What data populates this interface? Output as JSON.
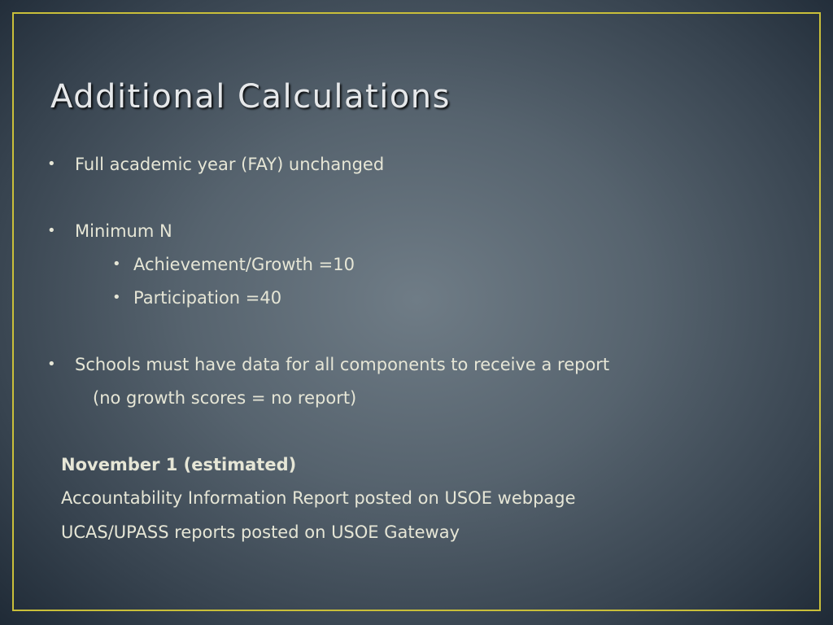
{
  "slide": {
    "title": "Additional Calculations",
    "bullets": [
      {
        "text": "Full academic year (FAY)  unchanged",
        "sub": []
      },
      {
        "text": "Minimum N",
        "sub": [
          "Achievement/Growth =10",
          "Participation =40"
        ]
      },
      {
        "text": "Schools must have data for all components to receive a report",
        "continuation": "(no growth scores = no report)",
        "sub": []
      }
    ],
    "note": {
      "heading": "November 1 (estimated)",
      "lines": [
        "Accountability Information Report posted on USOE webpage",
        "UCAS/UPASS reports posted on USOE Gateway"
      ]
    },
    "colors": {
      "frame": "#c9bf3a",
      "text": "#e6e6d6",
      "title": "#e6e8ea"
    }
  }
}
